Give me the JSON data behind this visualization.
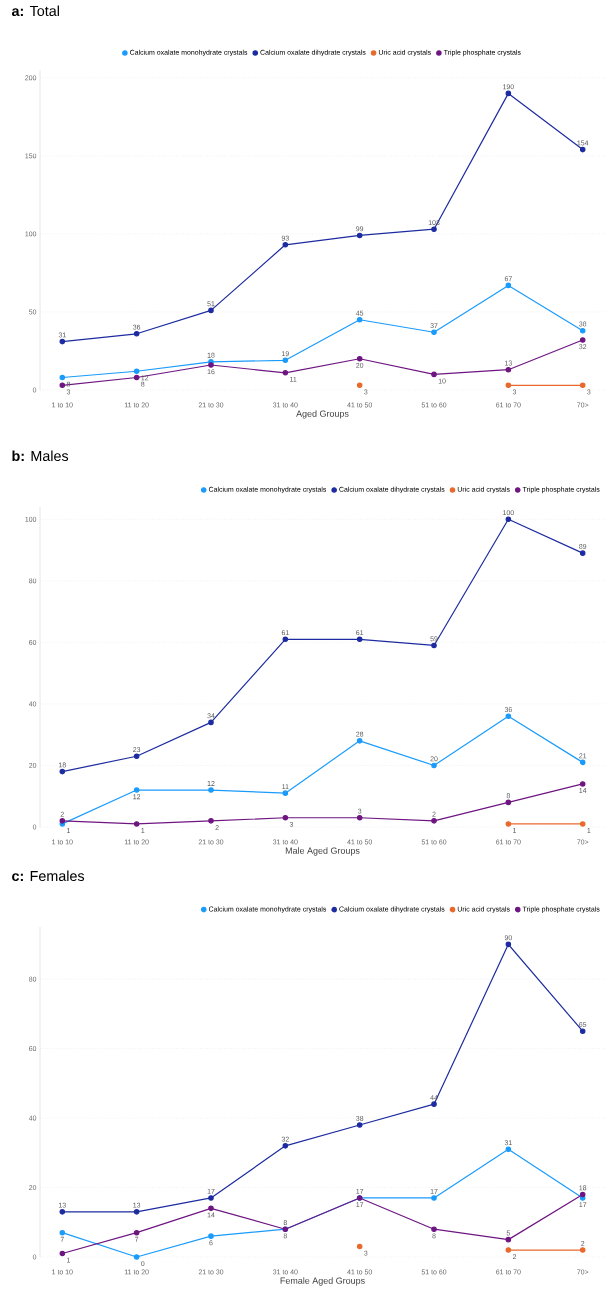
{
  "chart_data": [
    {
      "type": "line",
      "title": "**a:** Total",
      "xlabel": "Aged Groups",
      "categories": [
        "1 to 10",
        "11 to 20",
        "21 to 30",
        "31 to 40",
        "41 to 50",
        "51 to 60",
        "61 to 70",
        "70>"
      ],
      "ylim": [
        0,
        205
      ],
      "yticks": [
        0,
        50,
        100,
        150,
        200
      ],
      "grid": "y",
      "legend": "top",
      "marker": "circle",
      "line_style": "solid",
      "data_labels": true,
      "series": [
        {
          "name": "Calcium oxalate monohydrate crystals",
          "color": "#1a9bfc",
          "values": [
            8,
            12,
            18,
            19,
            45,
            37,
            67,
            38
          ]
        },
        {
          "name": "Calcium oxalate dihydrate crystals",
          "color": "#1c2ba0",
          "values": [
            31,
            36,
            51,
            93,
            99,
            103,
            190,
            154
          ]
        },
        {
          "name": "Uric acid crystals",
          "color": "#e8692b",
          "values": [
            null,
            null,
            null,
            null,
            3,
            null,
            3,
            3
          ]
        },
        {
          "name": "Triple phosphate crystals",
          "color": "#6e1581",
          "values": [
            3,
            8,
            16,
            11,
            20,
            10,
            13,
            32
          ]
        }
      ]
    },
    {
      "type": "line",
      "title": "**b:** Males",
      "xlabel": "Male Aged Groups",
      "categories": [
        "1 to 10",
        "11 to 20",
        "21 to 30",
        "31 to 40",
        "41 to 50",
        "51 to 60",
        "61 to 70",
        "70>"
      ],
      "ylim": [
        0,
        104
      ],
      "yticks": [
        0,
        20,
        40,
        60,
        80,
        100
      ],
      "grid": "y",
      "legend": "top right",
      "marker": "circle",
      "line_style": "solid",
      "data_labels": true,
      "series": [
        {
          "name": "Calcium oxalate monohydrate crystals",
          "color": "#1a9bfc",
          "values": [
            1,
            12,
            12,
            11,
            28,
            20,
            36,
            21
          ]
        },
        {
          "name": "Calcium oxalate dihydrate crystals",
          "color": "#1c2ba0",
          "values": [
            18,
            23,
            34,
            61,
            61,
            59,
            100,
            89
          ]
        },
        {
          "name": "Uric acid crystals",
          "color": "#e8692b",
          "values": [
            null,
            null,
            null,
            null,
            null,
            null,
            1,
            1
          ]
        },
        {
          "name": "Triple phosphate crystals",
          "color": "#6e1581",
          "values": [
            2,
            1,
            2,
            3,
            3,
            2,
            8,
            14
          ]
        }
      ]
    },
    {
      "type": "line",
      "title": "**c:** Females",
      "xlabel": "Female Aged Groups",
      "categories": [
        "1 to 10",
        "11 to 20",
        "21 to 30",
        "31 to 40",
        "41 to 50",
        "51 to 60",
        "61 to 70",
        "70>"
      ],
      "ylim": [
        0,
        95
      ],
      "yticks": [
        0,
        20,
        40,
        60,
        80
      ],
      "grid": "y",
      "legend": "top right",
      "marker": "circle",
      "line_style": "solid",
      "data_labels": true,
      "series": [
        {
          "name": "Calcium oxalate monohydrate crystals",
          "color": "#1a9bfc",
          "values": [
            7,
            0,
            6,
            8,
            17,
            17,
            31,
            17
          ]
        },
        {
          "name": "Calcium oxalate dihydrate crystals",
          "color": "#1c2ba0",
          "values": [
            13,
            13,
            17,
            32,
            38,
            44,
            90,
            65
          ]
        },
        {
          "name": "Uric acid crystals",
          "color": "#e8692b",
          "values": [
            null,
            null,
            null,
            null,
            3,
            null,
            2,
            2
          ]
        },
        {
          "name": "Triple phosphate crystals",
          "color": "#6e1581",
          "values": [
            1,
            7,
            14,
            8,
            17,
            8,
            5,
            18
          ]
        }
      ]
    }
  ]
}
